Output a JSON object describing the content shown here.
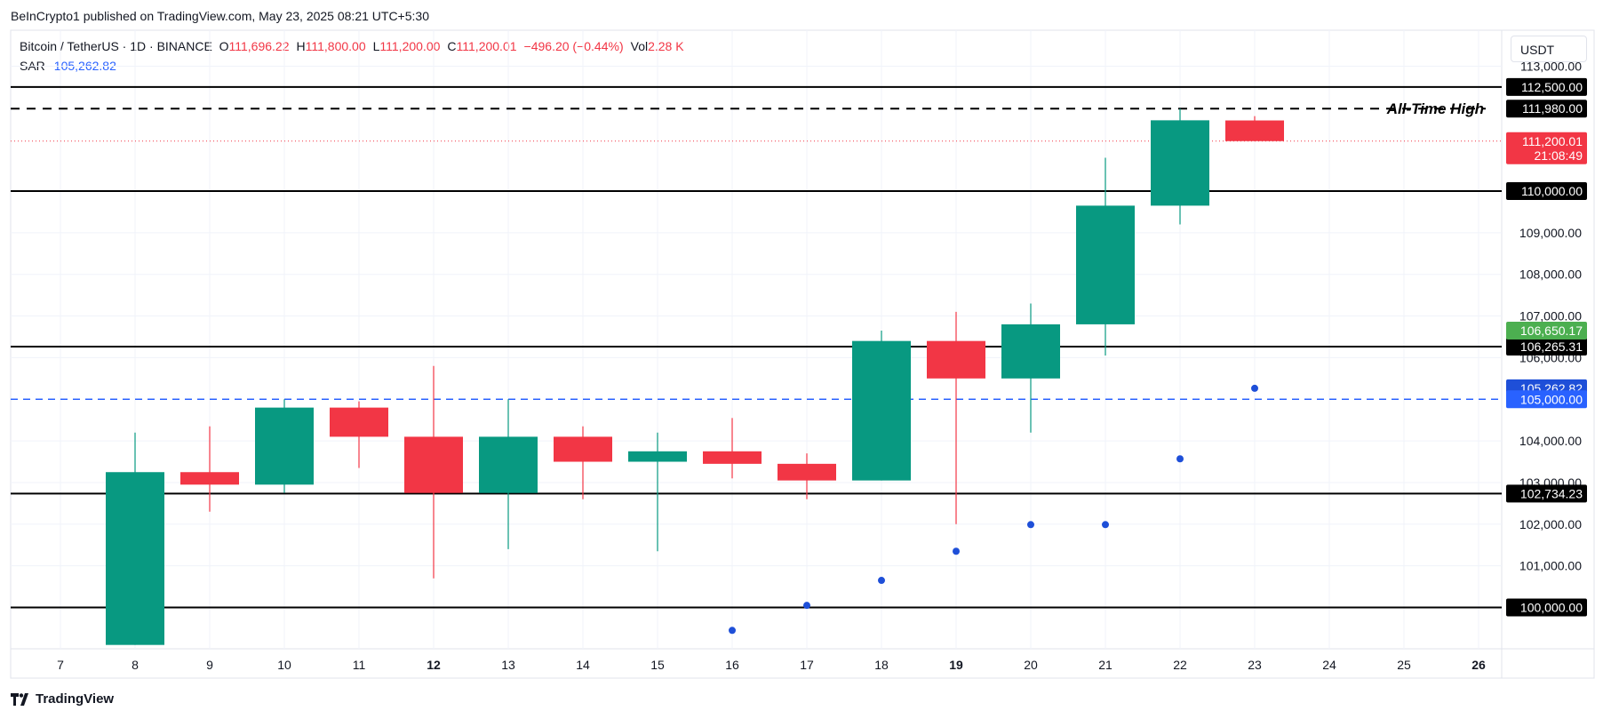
{
  "header": {
    "published": "BeInCrypto1 published on TradingView.com, May 23, 2025 08:21 UTC+5:30"
  },
  "legend": {
    "symbol": "Bitcoin / TetherUS · 1D · BINANCE",
    "o_label": "O",
    "o": "111,696.22",
    "h_label": "H",
    "h": "111,800.00",
    "l_label": "L",
    "l": "111,200.00",
    "c_label": "C",
    "c": "111,200.01",
    "change": "−496.20 (−0.44%)",
    "vol_label": "Vol",
    "vol": "2.28 K",
    "sar_label": "SAR",
    "sar": "105,262.82"
  },
  "currency_button": "USDT",
  "footer": {
    "brand": "TradingView",
    "logo_icon": "tradingview-logo-icon"
  },
  "colors": {
    "up": "#089981",
    "down": "#f23645",
    "sar": "#1e4fd8",
    "blue_line": "#2962ff",
    "black": "#000000"
  },
  "chart_data": {
    "type": "candlestick",
    "x_ticks": [
      "7",
      "8",
      "9",
      "10",
      "11",
      "12",
      "13",
      "14",
      "15",
      "16",
      "17",
      "18",
      "19",
      "20",
      "21",
      "22",
      "23",
      "24",
      "25",
      "26"
    ],
    "bold_ticks": [
      "12",
      "19",
      "26"
    ],
    "y_ticks": [
      "113,000.00",
      "109,000.00",
      "108,000.00",
      "107,000.00",
      "106,000.00",
      "104,000.00",
      "103,000.00",
      "102,000.00",
      "101,000.00"
    ],
    "ylim": [
      99100,
      113500
    ],
    "candles": [
      {
        "day": "8",
        "o": 103250,
        "h": 104200,
        "l": 99100,
        "c": 103250,
        "dir": "up",
        "body_low": 99100
      },
      {
        "day": "9",
        "o": 103250,
        "h": 104350,
        "l": 102300,
        "c": 102950
      },
      {
        "day": "10",
        "o": 102950,
        "h": 105000,
        "l": 102750,
        "c": 104800
      },
      {
        "day": "11",
        "o": 104800,
        "h": 104950,
        "l": 103350,
        "c": 104100
      },
      {
        "day": "12",
        "o": 104100,
        "h": 105800,
        "l": 100700,
        "c": 102750
      },
      {
        "day": "13",
        "o": 102750,
        "h": 105000,
        "l": 101400,
        "c": 104100
      },
      {
        "day": "14",
        "o": 104100,
        "h": 104350,
        "l": 102600,
        "c": 103500
      },
      {
        "day": "15",
        "o": 103500,
        "h": 104200,
        "l": 101350,
        "c": 103750
      },
      {
        "day": "16",
        "o": 103750,
        "h": 104550,
        "l": 103100,
        "c": 103450
      },
      {
        "day": "17",
        "o": 103450,
        "h": 103700,
        "l": 102600,
        "c": 103050
      },
      {
        "day": "18",
        "o": 103050,
        "h": 106650,
        "l": 103050,
        "c": 106400
      },
      {
        "day": "19",
        "o": 106400,
        "h": 107100,
        "l": 102000,
        "c": 105500
      },
      {
        "day": "20",
        "o": 105500,
        "h": 107300,
        "l": 104200,
        "c": 106800
      },
      {
        "day": "21",
        "o": 106800,
        "h": 110800,
        "l": 106050,
        "c": 109650
      },
      {
        "day": "22",
        "o": 109650,
        "h": 111980,
        "l": 109200,
        "c": 111700
      },
      {
        "day": "23",
        "o": 111696.22,
        "h": 111800,
        "l": 111200,
        "c": 111200.01
      }
    ],
    "sar_points": [
      {
        "day": "16",
        "value": 99450
      },
      {
        "day": "17",
        "value": 100050
      },
      {
        "day": "18",
        "value": 100650
      },
      {
        "day": "19",
        "value": 101350
      },
      {
        "day": "20",
        "value": 101990
      },
      {
        "day": "21",
        "value": 101990
      },
      {
        "day": "22",
        "value": 103570
      },
      {
        "day": "23",
        "value": 105262.82
      }
    ],
    "levels": [
      {
        "value": 112500,
        "label": "112,500.00",
        "style": "solid"
      },
      {
        "value": 111980,
        "label": "111,980.00",
        "style": "dashed",
        "annotation": "All-Time High"
      },
      {
        "value": 110000,
        "label": "110,000.00",
        "style": "solid"
      },
      {
        "value": 106265.31,
        "label": "106,265.31",
        "style": "solid"
      },
      {
        "value": 105000,
        "label": "105,000.00",
        "style": "dashed-blue"
      },
      {
        "value": 102734.23,
        "label": "102,734.23",
        "style": "solid"
      },
      {
        "value": 100000,
        "label": "100,000.00",
        "style": "solid"
      }
    ],
    "price_tags": [
      {
        "value": 111200.01,
        "label": "111,200.01",
        "sub": "21:08:49",
        "color": "#f23645"
      },
      {
        "value": 106650.17,
        "label": "106,650.17",
        "color": "#4caf50"
      },
      {
        "value": 105262.82,
        "label": "105,262.82",
        "color": "#1e4fd8"
      },
      {
        "value": 105000,
        "label": "105,000.00",
        "color": "#2962ff"
      }
    ]
  }
}
